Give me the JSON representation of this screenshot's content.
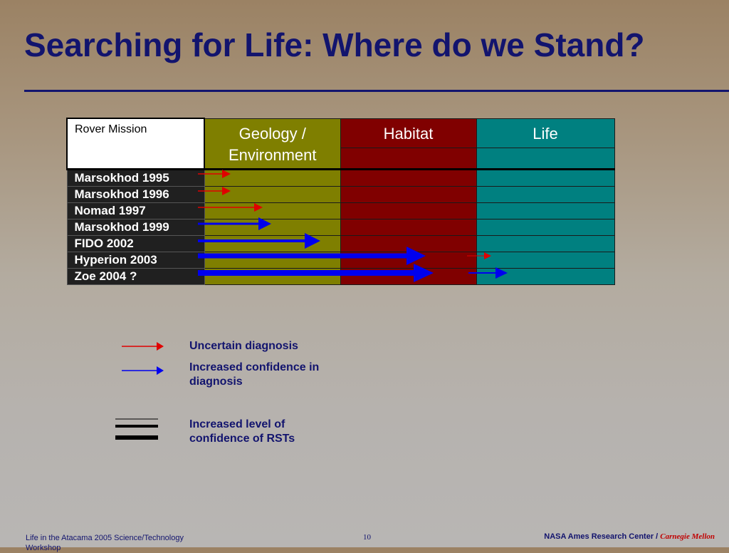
{
  "slide": {
    "title": "Searching for Life: Where do we Stand?"
  },
  "table": {
    "header_rover": "Rover Mission",
    "header_geology": "Geology / Environment",
    "header_habitat": "Habitat",
    "header_life": "Life",
    "colors": {
      "geology": "#7f7f00",
      "habitat": "#800000",
      "life": "#008080",
      "mission_bg": "#202020"
    },
    "missions": [
      {
        "name": "Marsokhod 1995"
      },
      {
        "name": "Marsokhod 1996"
      },
      {
        "name": "Nomad 1997"
      },
      {
        "name": "Marsokhod 1999"
      },
      {
        "name": "FIDO 2002"
      },
      {
        "name": "Hyperion 2003"
      },
      {
        "name": "Zoe 2004 ?"
      }
    ]
  },
  "legend": {
    "uncertain": "Uncertain diagnosis",
    "increased": "Increased confidence in diagnosis",
    "level": "Increased level of confidence of RSTs",
    "colors": {
      "uncertain": "#e00000",
      "increased": "#0000ee"
    }
  },
  "footer": {
    "left": "Life in the Atacama 2005 Science/Technology Workshop",
    "page": "10",
    "org": "NASA Ames Research Center",
    "separator": " / ",
    "partner": "Carnegie Mellon"
  }
}
